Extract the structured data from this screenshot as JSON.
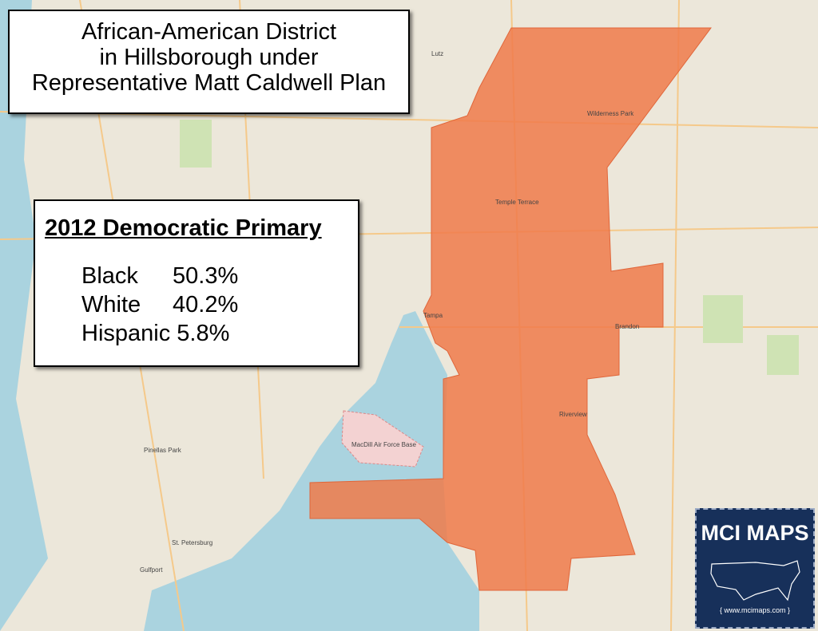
{
  "title": {
    "lines": [
      "African-American District",
      "in Hillsborough under",
      "Representative Matt Caldwell Plan"
    ]
  },
  "stats": {
    "heading": "2012 Democratic Primary",
    "rows": [
      [
        "Black",
        "50.3%"
      ],
      [
        "White",
        "40.2%"
      ],
      [
        "Hispanic",
        "5.8%"
      ]
    ]
  },
  "logo": {
    "name": "MCI MAPS",
    "url": "{ www.mcimaps.com }"
  },
  "places": [
    "Lutz",
    "Temple Terrace",
    "Wilderness Park",
    "Tampa",
    "Brandon",
    "Riverview",
    "St. Petersburg",
    "Pinellas Park",
    "Gulfport",
    "MacDill Air Force Base"
  ]
}
